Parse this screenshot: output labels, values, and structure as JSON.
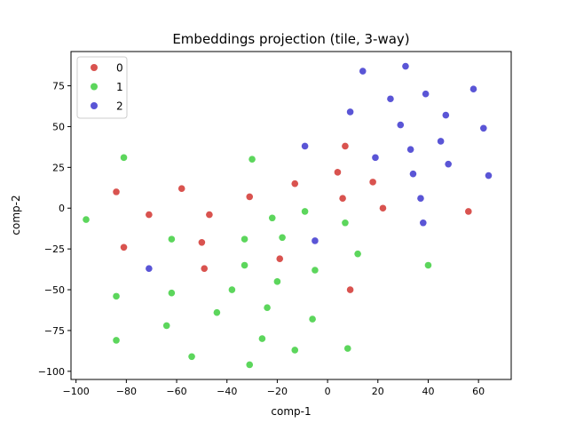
{
  "chart_data": {
    "type": "scatter",
    "title": "Embeddings projection (tile, 3-way)",
    "xlabel": "comp-1",
    "ylabel": "comp-2",
    "xlim": [
      -102,
      73
    ],
    "ylim": [
      -105,
      96
    ],
    "xticks": [
      -100,
      -80,
      -60,
      -40,
      -20,
      0,
      20,
      40,
      60
    ],
    "yticks": [
      -100,
      -75,
      -50,
      -25,
      0,
      25,
      50,
      75
    ],
    "grid": false,
    "legend_position": "upper-left",
    "series": [
      {
        "name": "0",
        "color": "#d9534f",
        "points": [
          [
            -84,
            10
          ],
          [
            -81,
            -24
          ],
          [
            -71,
            -4
          ],
          [
            -58,
            12
          ],
          [
            -50,
            -21
          ],
          [
            -49,
            -37
          ],
          [
            -47,
            -4
          ],
          [
            -31,
            7
          ],
          [
            -19,
            -31
          ],
          [
            -13,
            15
          ],
          [
            4,
            22
          ],
          [
            6,
            6
          ],
          [
            7,
            38
          ],
          [
            9,
            -50
          ],
          [
            18,
            16
          ],
          [
            22,
            0
          ],
          [
            56,
            -2
          ]
        ]
      },
      {
        "name": "1",
        "color": "#5cd65c",
        "points": [
          [
            -96,
            -7
          ],
          [
            -84,
            -54
          ],
          [
            -84,
            -81
          ],
          [
            -81,
            31
          ],
          [
            -62,
            -19
          ],
          [
            -62,
            -52
          ],
          [
            -64,
            -72
          ],
          [
            -54,
            -91
          ],
          [
            -44,
            -64
          ],
          [
            -38,
            -50
          ],
          [
            -33,
            -19
          ],
          [
            -33,
            -35
          ],
          [
            -30,
            30
          ],
          [
            -31,
            -96
          ],
          [
            -26,
            -80
          ],
          [
            -24,
            -61
          ],
          [
            -22,
            -6
          ],
          [
            -20,
            -45
          ],
          [
            -18,
            -18
          ],
          [
            -13,
            -87
          ],
          [
            -9,
            -2
          ],
          [
            -6,
            -68
          ],
          [
            -5,
            -38
          ],
          [
            7,
            -9
          ],
          [
            8,
            -86
          ],
          [
            12,
            -28
          ],
          [
            40,
            -35
          ]
        ]
      },
      {
        "name": "2",
        "color": "#5a55d6",
        "points": [
          [
            -71,
            -37
          ],
          [
            -9,
            38
          ],
          [
            -5,
            -20
          ],
          [
            9,
            59
          ],
          [
            14,
            84
          ],
          [
            19,
            31
          ],
          [
            25,
            67
          ],
          [
            29,
            51
          ],
          [
            31,
            87
          ],
          [
            33,
            36
          ],
          [
            34,
            21
          ],
          [
            37,
            6
          ],
          [
            38,
            -9
          ],
          [
            39,
            70
          ],
          [
            45,
            41
          ],
          [
            47,
            57
          ],
          [
            48,
            27
          ],
          [
            58,
            73
          ],
          [
            62,
            49
          ],
          [
            64,
            20
          ]
        ]
      }
    ]
  }
}
